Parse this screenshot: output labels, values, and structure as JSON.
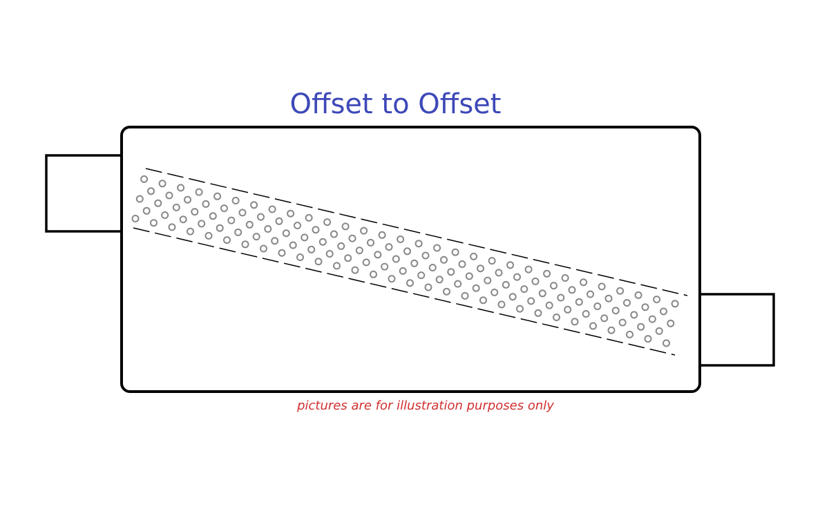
{
  "title": "Offset to Offset",
  "caption": "pictures are for illustration purposes only",
  "colors": {
    "title": "#3d48b8",
    "caption": "#d03030",
    "outline": "#000000",
    "perforation": "#888888"
  },
  "diagram": {
    "type": "muffler",
    "inlet": "left-offset-top",
    "outlet": "right-offset-bottom",
    "perforated_tube": "diagonal"
  }
}
